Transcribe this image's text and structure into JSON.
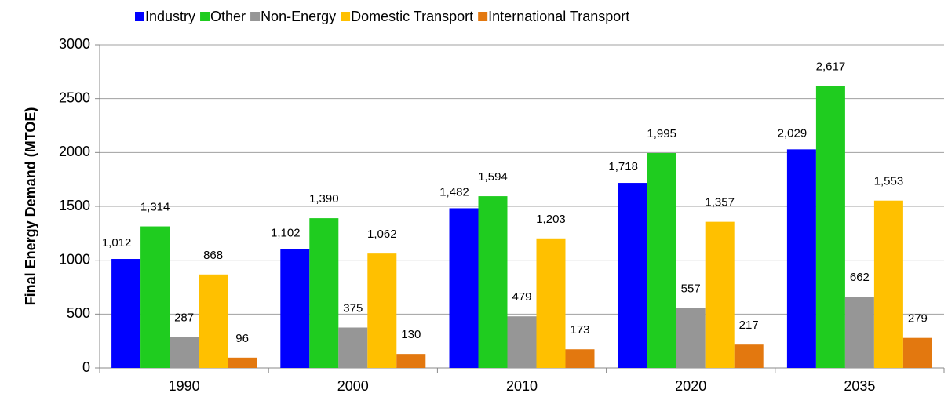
{
  "chart_data": {
    "type": "bar",
    "y_label": "Final Energy Demand (MTOE)",
    "categories": [
      "1990",
      "2000",
      "2010",
      "2020",
      "2035"
    ],
    "series": [
      {
        "name": "Industry",
        "color": "#0000ff",
        "values": [
          1012,
          1102,
          1482,
          1718,
          2029
        ],
        "value_labels": [
          "1,012",
          "1,102",
          "1,482",
          "1,718",
          "2,029"
        ]
      },
      {
        "name": "Other",
        "color": "#1fcc1f",
        "values": [
          1314,
          1390,
          1594,
          1995,
          2617
        ],
        "value_labels": [
          "1,314",
          "1,390",
          "1,594",
          "1,995",
          "2,617"
        ]
      },
      {
        "name": "Non-Energy",
        "color": "#969696",
        "values": [
          287,
          375,
          479,
          557,
          662
        ]
      },
      {
        "name": "Domestic Transport",
        "color": "#ffc000",
        "values": [
          868,
          1062,
          1203,
          1357,
          1553
        ],
        "value_labels": [
          "868",
          "1,062",
          "1,203",
          "1,357",
          "1,553"
        ]
      },
      {
        "name": "International Transport",
        "color": "#e3780f",
        "values": [
          96,
          130,
          173,
          217,
          279
        ]
      }
    ],
    "ylim": [
      0,
      3000
    ],
    "yticks": [
      0,
      500,
      1000,
      1500,
      2000,
      2500,
      3000
    ],
    "grid": true,
    "legend": "top"
  }
}
